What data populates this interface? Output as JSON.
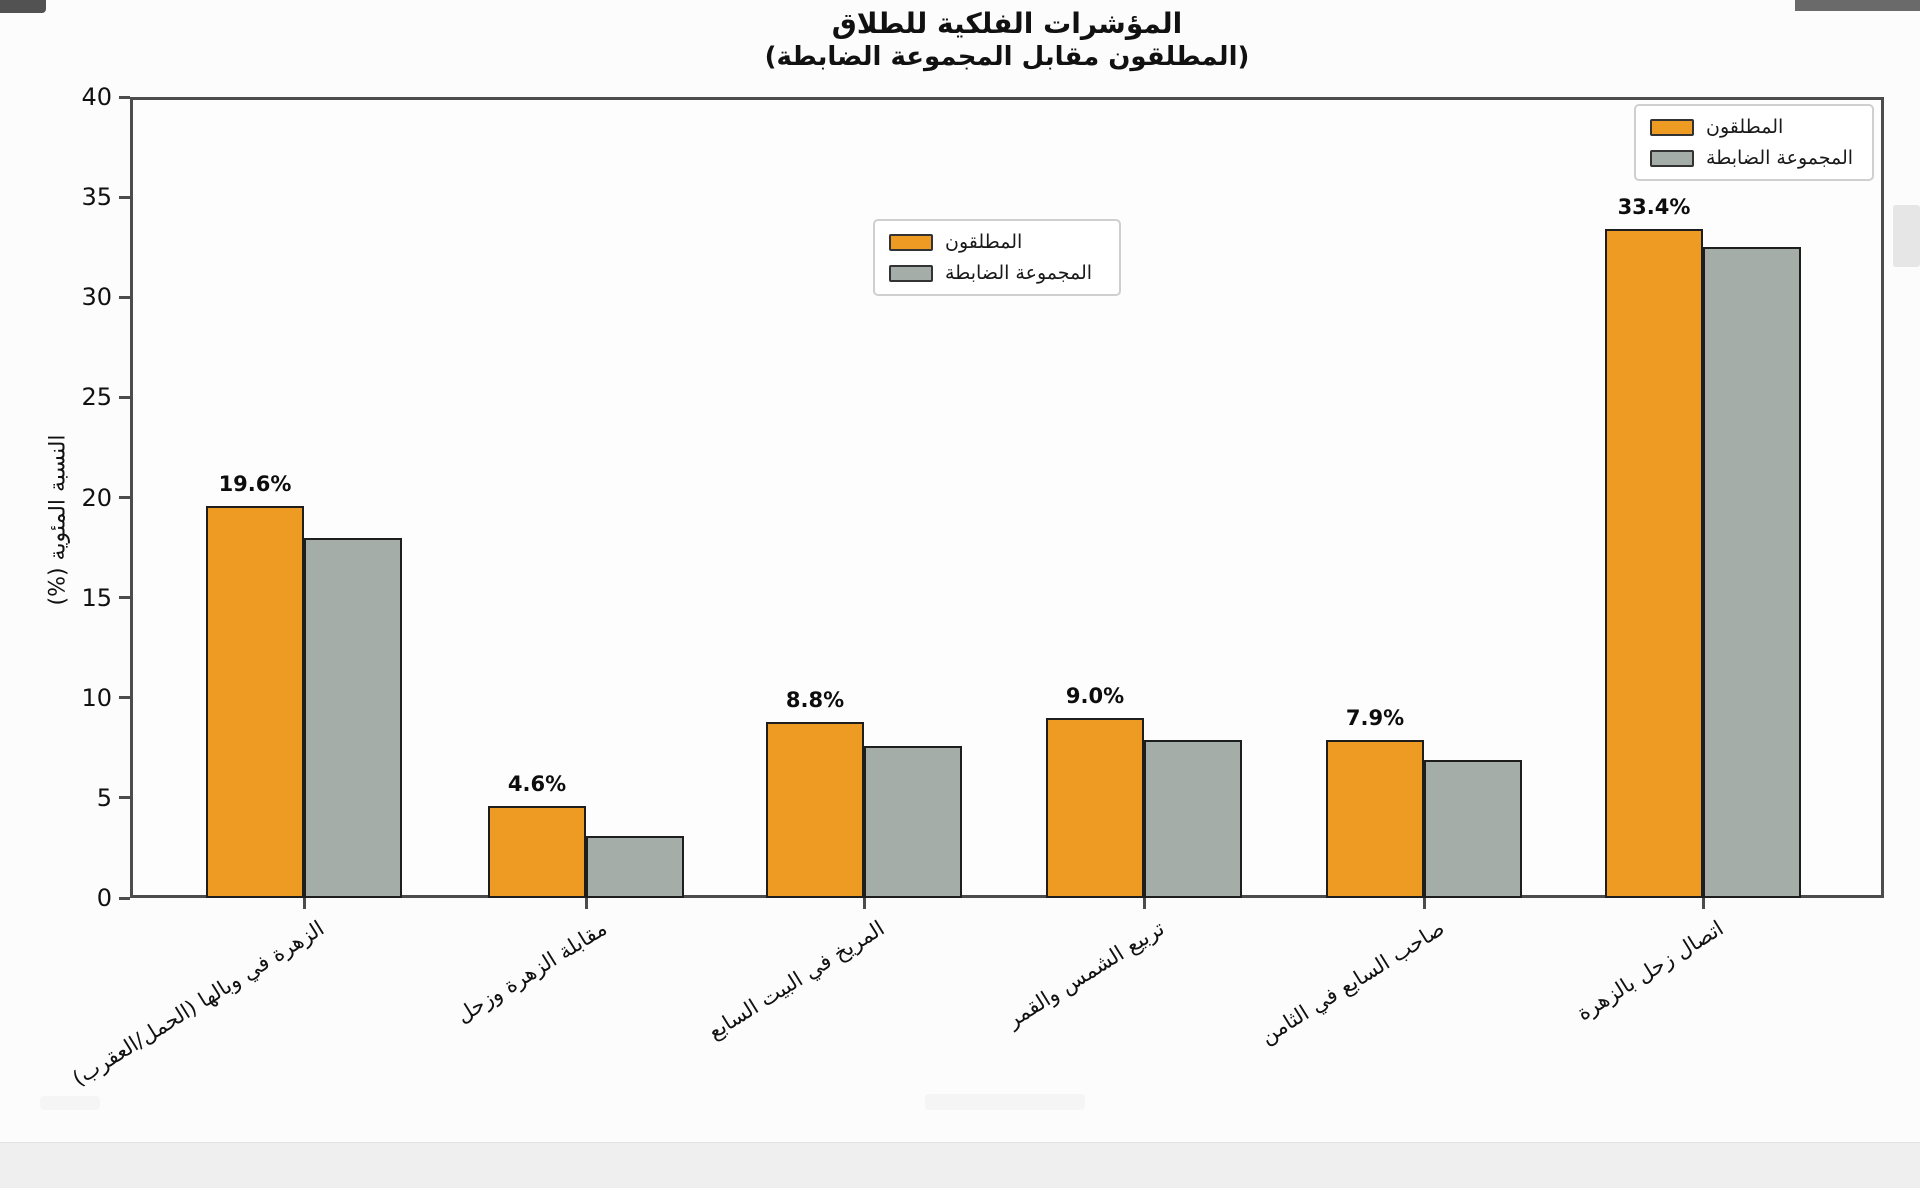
{
  "header": {
    "title": "المؤشرات الفلكية للطلاق",
    "subtitle": "(المطلقون مقابل المجموعة الضابطة)"
  },
  "legend": {
    "items": [
      {
        "label": "المطلقون",
        "color": "#EE9B23"
      },
      {
        "label": "المجموعة الضابطة",
        "color": "#A5ADA9"
      }
    ]
  },
  "chart_data": {
    "type": "bar",
    "title": "المؤشرات الفلكية للطلاق",
    "subtitle": "(المطلقون مقابل المجموعة الضابطة)",
    "ylabel": "النسبة المئوية (%)",
    "xlabel": "",
    "ylim": [
      0,
      40
    ],
    "yticks": [
      0,
      5,
      10,
      15,
      20,
      25,
      30,
      35,
      40
    ],
    "grid": false,
    "legend_positions": [
      "upper-center",
      "upper-right"
    ],
    "categories": [
      "الزهرة في وبالها (الحمل/العقرب)",
      "مقابلة الزهرة وزحل",
      "المريخ في البيت السابع",
      "تربيع الشمس والقمر",
      "صاحب السابع في الثامن",
      "اتصال زحل بالزهرة"
    ],
    "series": [
      {
        "name": "المطلقون",
        "color": "#EE9B23",
        "edge_color": "#1e1e1e",
        "values": [
          19.6,
          4.6,
          8.8,
          9.0,
          7.9,
          33.4
        ],
        "value_labels": [
          "19.6%",
          "4.6%",
          "8.8%",
          "9.0%",
          "7.9%",
          "33.4%"
        ]
      },
      {
        "name": "المجموعة الضابطة",
        "color": "#A5ADA9",
        "edge_color": "#1e1e1e",
        "values": [
          18.0,
          3.1,
          7.6,
          7.9,
          6.9,
          32.5
        ],
        "value_labels": []
      }
    ]
  }
}
